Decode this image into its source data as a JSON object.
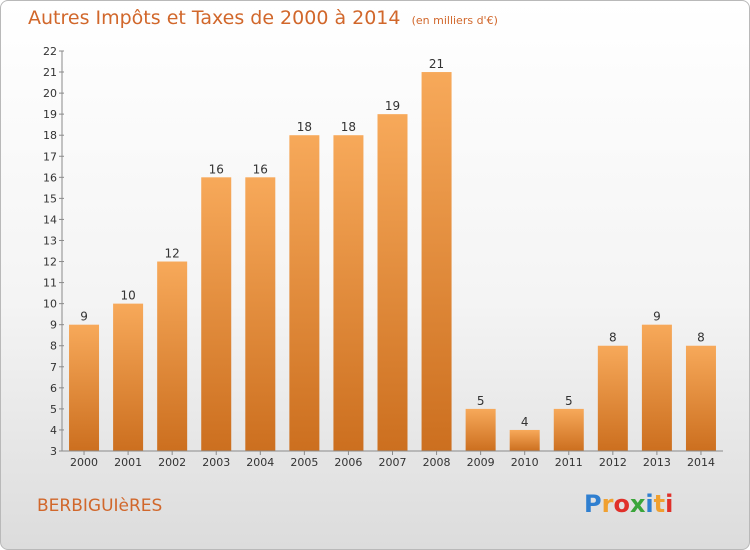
{
  "header": {
    "title": "Autres Impôts et Taxes de 2000 à 2014",
    "unit_note": "(en milliers d'€)"
  },
  "footer": {
    "commune": "BERBIGUIèRES",
    "brand": "Proxiti",
    "brand_letters": [
      "P",
      "r",
      "o",
      "x",
      "i",
      "t",
      "i"
    ],
    "brand_colors": [
      "#2f7fd0",
      "#f0a030",
      "#e0302a",
      "#3aa53a",
      "#2f7fd0",
      "#f0a030",
      "#e0302a"
    ]
  },
  "colors": {
    "accent": "#d1672b",
    "bar_top": "#f7a95a",
    "bar_bottom": "#cc6f1f",
    "axis": "#8a8a8a",
    "grid_text": "#333333"
  },
  "chart_data": {
    "type": "bar",
    "title": "Autres Impôts et Taxes de 2000 à 2014",
    "subtitle": "(en milliers d'€)",
    "categories": [
      "2000",
      "2001",
      "2002",
      "2003",
      "2004",
      "2005",
      "2006",
      "2007",
      "2008",
      "2009",
      "2010",
      "2011",
      "2012",
      "2013",
      "2014"
    ],
    "values": [
      9,
      10,
      12,
      16,
      16,
      18,
      18,
      19,
      21,
      5,
      4,
      5,
      8,
      9,
      8
    ],
    "ylim": [
      3,
      22
    ],
    "yticks": [
      3,
      4,
      5,
      6,
      7,
      8,
      9,
      10,
      11,
      12,
      13,
      14,
      15,
      16,
      17,
      18,
      19,
      20,
      21,
      22
    ],
    "xlabel": "",
    "ylabel": "",
    "grid": false,
    "data_labels": true
  }
}
